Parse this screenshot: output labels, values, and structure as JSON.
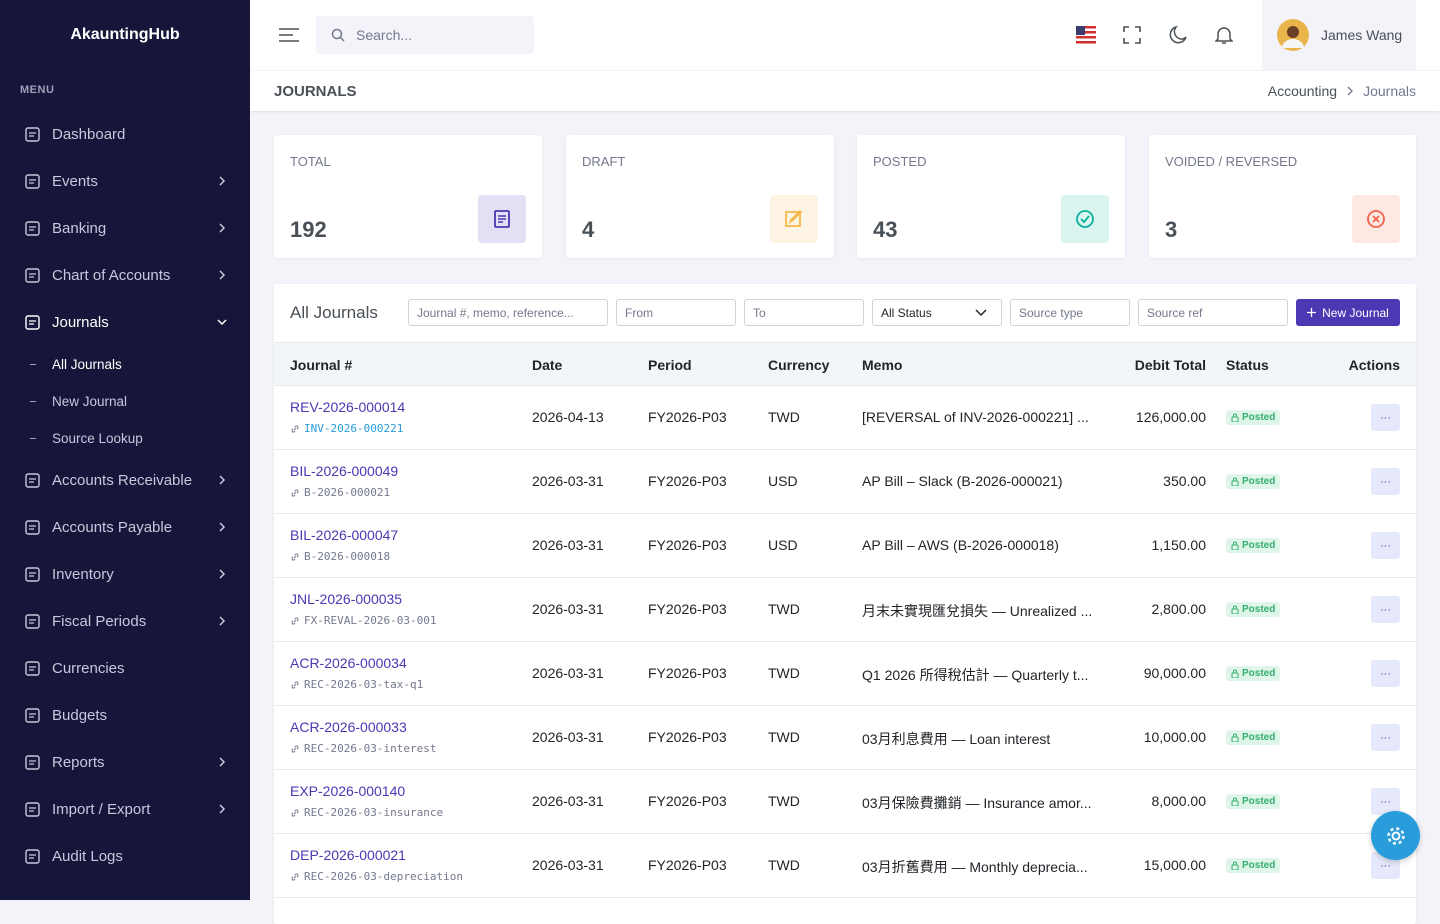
{
  "sidebar": {
    "brand": "AkauntingHub",
    "menu_label": "MENU",
    "items": [
      {
        "label": "Dashboard",
        "expandable": false
      },
      {
        "label": "Events",
        "expandable": true
      },
      {
        "label": "Banking",
        "expandable": true
      },
      {
        "label": "Chart of Accounts",
        "expandable": true
      },
      {
        "label": "Journals",
        "expandable": true,
        "expanded": true,
        "active": true,
        "children": [
          {
            "label": "All Journals",
            "active": true
          },
          {
            "label": "New Journal"
          },
          {
            "label": "Source Lookup"
          }
        ]
      },
      {
        "label": "Accounts Receivable",
        "expandable": true
      },
      {
        "label": "Accounts Payable",
        "expandable": true
      },
      {
        "label": "Inventory",
        "expandable": true
      },
      {
        "label": "Fiscal Periods",
        "expandable": true
      },
      {
        "label": "Currencies",
        "expandable": false
      },
      {
        "label": "Budgets",
        "expandable": false
      },
      {
        "label": "Reports",
        "expandable": true
      },
      {
        "label": "Import / Export",
        "expandable": true
      },
      {
        "label": "Audit Logs",
        "expandable": false
      }
    ]
  },
  "topbar": {
    "search_placeholder": "Search...",
    "user": "James Wang"
  },
  "page": {
    "title": "JOURNALS",
    "breadcrumb": [
      "Accounting",
      "Journals"
    ]
  },
  "stats": [
    {
      "label": "TOTAL",
      "value": 192,
      "color": "#4b38b3",
      "bg": "#e2e0f4"
    },
    {
      "label": "DRAFT",
      "value": 4,
      "color": "#f7b84b",
      "bg": "#fef4e4"
    },
    {
      "label": "POSTED",
      "value": 43,
      "color": "#0ab39c",
      "bg": "#daf4f0"
    },
    {
      "label": "VOIDED / REVERSED",
      "value": 3,
      "color": "#f06548",
      "bg": "#fde8e4"
    }
  ],
  "table": {
    "title": "All Journals",
    "filters": {
      "search": "Journal #, memo, reference...",
      "from": "From",
      "to": "To",
      "status": "All Status",
      "source_type": "Source type",
      "source_ref": "Source ref"
    },
    "new_button": "New Journal",
    "columns": [
      "Journal #",
      "Date",
      "Period",
      "Currency",
      "Memo",
      "Debit Total",
      "Status",
      "Actions"
    ],
    "rows": [
      {
        "journal": "REV-2026-000014",
        "ref": "INV-2026-000221",
        "ref_link": true,
        "date": "2026-04-13",
        "period": "FY2026-P03",
        "currency": "TWD",
        "memo": "[REVERSAL of INV-2026-000221] ...",
        "debit": "126,000.00",
        "status": "Posted",
        "action": "···"
      },
      {
        "journal": "BIL-2026-000049",
        "ref": "B-2026-000021",
        "date": "2026-03-31",
        "period": "FY2026-P03",
        "currency": "USD",
        "memo": "AP Bill – Slack (B-2026-000021)",
        "debit": "350.00",
        "status": "Posted",
        "action": "···"
      },
      {
        "journal": "BIL-2026-000047",
        "ref": "B-2026-000018",
        "date": "2026-03-31",
        "period": "FY2026-P03",
        "currency": "USD",
        "memo": "AP Bill – AWS (B-2026-000018)",
        "debit": "1,150.00",
        "status": "Posted",
        "action": "···"
      },
      {
        "journal": "JNL-2026-000035",
        "ref": "FX-REVAL-2026-03-001",
        "date": "2026-03-31",
        "period": "FY2026-P03",
        "currency": "TWD",
        "memo": "月末未實現匯兌損失 — Unrealized ...",
        "debit": "2,800.00",
        "status": "Posted",
        "action": "···"
      },
      {
        "journal": "ACR-2026-000034",
        "ref": "REC-2026-03-tax-q1",
        "date": "2026-03-31",
        "period": "FY2026-P03",
        "currency": "TWD",
        "memo": "Q1 2026 所得稅估計 — Quarterly t...",
        "debit": "90,000.00",
        "status": "Posted",
        "action": "···"
      },
      {
        "journal": "ACR-2026-000033",
        "ref": "REC-2026-03-interest",
        "date": "2026-03-31",
        "period": "FY2026-P03",
        "currency": "TWD",
        "memo": "03月利息費用 — Loan interest",
        "debit": "10,000.00",
        "status": "Posted",
        "action": "···"
      },
      {
        "journal": "EXP-2026-000140",
        "ref": "REC-2026-03-insurance",
        "date": "2026-03-31",
        "period": "FY2026-P03",
        "currency": "TWD",
        "memo": "03月保險費攤銷 — Insurance amor...",
        "debit": "8,000.00",
        "status": "Posted",
        "action": "···"
      },
      {
        "journal": "DEP-2026-000021",
        "ref": "REC-2026-03-depreciation",
        "date": "2026-03-31",
        "period": "FY2026-P03",
        "currency": "TWD",
        "memo": "03月折舊費用 — Monthly deprecia...",
        "debit": "15,000.00",
        "status": "Posted",
        "action": "···"
      }
    ]
  }
}
